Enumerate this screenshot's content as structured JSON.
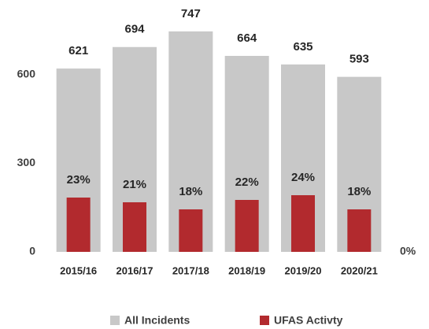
{
  "chart_data": {
    "type": "bar",
    "categories": [
      "2015/16",
      "2016/17",
      "2017/18",
      "2018/19",
      "2019/20",
      "2020/21"
    ],
    "series": [
      {
        "name": "All Incidents",
        "color": "#c8c8c8",
        "values": [
          621,
          694,
          747,
          664,
          635,
          593
        ]
      },
      {
        "name": "UFAS Activty",
        "color": "#b22a2e",
        "axis": "y2",
        "values": [
          23,
          21,
          18,
          22,
          24,
          18
        ],
        "value_labels": [
          "23%",
          "21%",
          "18%",
          "22%",
          "24%",
          "18%"
        ]
      }
    ],
    "ylim": [
      0,
      800
    ],
    "yticks": [
      0,
      300,
      600
    ],
    "y2lim": [
      0,
      100
    ],
    "y2ticks": [
      {
        "value": 0,
        "label": "0%"
      }
    ],
    "grid": false,
    "legend": "bottom"
  }
}
